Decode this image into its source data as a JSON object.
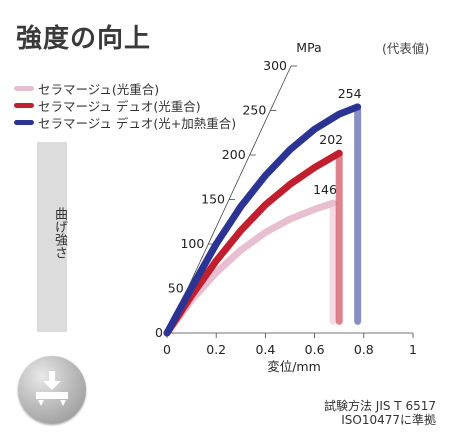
{
  "title": "強度の向上",
  "unit_note": "(代表値)",
  "side_label": "曲げ強さ",
  "test_method": {
    "line1": "試験方法 JIS T 6517",
    "line2": "ISO10477に準拠"
  },
  "icon": "flexural-test-icon",
  "chart_data": {
    "type": "line",
    "title": "強度の向上",
    "xlabel": "変位/mm",
    "ylabel": "MPa",
    "xlim": [
      0,
      1
    ],
    "ylim": [
      0,
      300
    ],
    "x_ticks": [
      "0",
      "0.2",
      "0.4",
      "0.6",
      "0.8",
      "1"
    ],
    "y_ticks": [
      "0",
      "50",
      "100",
      "150",
      "200",
      "250",
      "300"
    ],
    "grid": false,
    "legend_position": "top-left",
    "series": [
      {
        "name": "セラマージュ(光重合)",
        "color": "#e8bfd0",
        "peak_label": "146",
        "points": [
          [
            0,
            0
          ],
          [
            0.1,
            37
          ],
          [
            0.2,
            68
          ],
          [
            0.3,
            93
          ],
          [
            0.4,
            113
          ],
          [
            0.5,
            128
          ],
          [
            0.6,
            139
          ],
          [
            0.675,
            146
          ]
        ],
        "failure": {
          "x": 0.675,
          "peak": 146,
          "drop_to": 13
        }
      },
      {
        "name": "セラマージュ デュオ(光重合)",
        "color": "#c11f2d",
        "peak_label": "202",
        "points": [
          [
            0,
            0
          ],
          [
            0.1,
            42
          ],
          [
            0.2,
            81
          ],
          [
            0.3,
            115
          ],
          [
            0.4,
            144
          ],
          [
            0.5,
            167
          ],
          [
            0.6,
            186
          ],
          [
            0.7,
            202
          ]
        ],
        "failure": {
          "x": 0.7,
          "peak": 202,
          "drop_to": 13
        }
      },
      {
        "name": "セラマージュ デュオ(光+加熱重合)",
        "color": "#2b3493",
        "peak_label": "254",
        "points": [
          [
            0,
            0
          ],
          [
            0.1,
            51
          ],
          [
            0.2,
            100
          ],
          [
            0.3,
            142
          ],
          [
            0.4,
            177
          ],
          [
            0.5,
            206
          ],
          [
            0.6,
            229
          ],
          [
            0.7,
            246
          ],
          [
            0.775,
            254
          ]
        ],
        "failure": {
          "x": 0.775,
          "peak": 254,
          "drop_to": 13
        }
      }
    ]
  }
}
